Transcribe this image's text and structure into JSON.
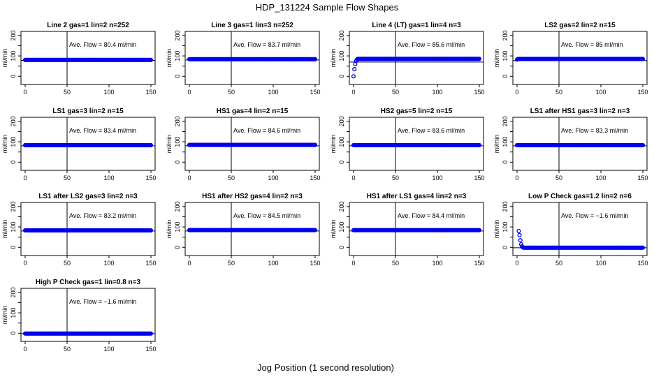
{
  "figure": {
    "title": "HDP_131224  Sample Flow Shapes",
    "xlabel": "Jog Position (1 second resolution)"
  },
  "chart_data": [
    {
      "type": "scatter",
      "title": "Line 2 gas=1 lin=2 n=252",
      "annotation": "Ave. Flow =  80.4  ml/min",
      "ylabel": "ml/min",
      "ylim": [
        -40,
        220
      ],
      "xlim": [
        -5,
        155
      ],
      "xticks": [
        0,
        50,
        100,
        150
      ],
      "yticks": [
        0,
        100,
        200
      ],
      "yticks_minor": [
        50,
        150
      ],
      "vline_x": 50,
      "hline_y": 78,
      "points": {
        "x_start": 0,
        "x_end": 150,
        "values": [
          80.4
        ]
      }
    },
    {
      "type": "scatter",
      "title": "Line 3 gas=1 lin=3 n=252",
      "annotation": "Ave. Flow =  83.7  ml/min",
      "ylabel": "ml/min",
      "ylim": [
        -40,
        220
      ],
      "xlim": [
        -5,
        155
      ],
      "xticks": [
        0,
        50,
        100,
        150
      ],
      "yticks": [
        0,
        100,
        200
      ],
      "yticks_minor": [
        50,
        150
      ],
      "vline_x": 50,
      "hline_y": 80,
      "points": {
        "x_start": 0,
        "x_end": 150,
        "values": [
          83.7
        ]
      }
    },
    {
      "type": "scatter",
      "title": "Line 4 (LT) gas=1 lin=4 n=3",
      "annotation": "Ave. Flow =  85.6  ml/min",
      "ylabel": "ml/min",
      "ylim": [
        -40,
        220
      ],
      "xlim": [
        -5,
        155
      ],
      "xticks": [
        0,
        50,
        100,
        150
      ],
      "yticks": [
        0,
        100,
        200
      ],
      "yticks_minor": [
        50,
        150
      ],
      "vline_x": 50,
      "hline_y": 70,
      "points": {
        "x_start": 0,
        "x_end": 150,
        "values": [
          0,
          35,
          60,
          75,
          82,
          85.6
        ]
      }
    },
    {
      "type": "scatter",
      "title": "LS2 gas=2 lin=2 n=15",
      "annotation": "Ave. Flow =  85  ml/min",
      "ylabel": "ml/min",
      "ylim": [
        -40,
        220
      ],
      "xlim": [
        -5,
        155
      ],
      "xticks": [
        0,
        50,
        100,
        150
      ],
      "yticks": [
        0,
        100,
        200
      ],
      "yticks_minor": [
        50,
        150
      ],
      "vline_x": 50,
      "hline_y": 77,
      "points": {
        "x_start": 0,
        "x_end": 150,
        "values": [
          82,
          85
        ]
      }
    },
    {
      "type": "scatter",
      "title": "LS1 gas=3 lin=2 n=15",
      "annotation": "Ave. Flow =  83.4  ml/min",
      "ylabel": "ml/min",
      "ylim": [
        -40,
        220
      ],
      "xlim": [
        -5,
        155
      ],
      "xticks": [
        0,
        50,
        100,
        150
      ],
      "yticks": [
        0,
        100,
        200
      ],
      "yticks_minor": [
        50,
        150
      ],
      "vline_x": 50,
      "hline_y": 80,
      "points": {
        "x_start": 0,
        "x_end": 150,
        "values": [
          83.4
        ]
      }
    },
    {
      "type": "scatter",
      "title": "HS1 gas=4 lin=2 n=15",
      "annotation": "Ave. Flow =  84.6  ml/min",
      "ylabel": "ml/min",
      "ylim": [
        -40,
        220
      ],
      "xlim": [
        -5,
        155
      ],
      "xticks": [
        0,
        50,
        100,
        150
      ],
      "yticks": [
        0,
        100,
        200
      ],
      "yticks_minor": [
        50,
        150
      ],
      "vline_x": 50,
      "hline_y": 80,
      "points": {
        "x_start": 0,
        "x_end": 150,
        "values": [
          84.6
        ]
      }
    },
    {
      "type": "scatter",
      "title": "HS2 gas=5 lin=2 n=15",
      "annotation": "Ave. Flow =  83.6  ml/min",
      "ylabel": "ml/min",
      "ylim": [
        -40,
        220
      ],
      "xlim": [
        -5,
        155
      ],
      "xticks": [
        0,
        50,
        100,
        150
      ],
      "yticks": [
        0,
        100,
        200
      ],
      "yticks_minor": [
        50,
        150
      ],
      "vline_x": 50,
      "hline_y": 80,
      "points": {
        "x_start": 0,
        "x_end": 150,
        "values": [
          83.6
        ]
      }
    },
    {
      "type": "scatter",
      "title": "LS1 after HS1 gas=3 lin=2 n=3",
      "annotation": "Ave. Flow =  83.3  ml/min",
      "ylabel": "ml/min",
      "ylim": [
        -40,
        220
      ],
      "xlim": [
        -5,
        155
      ],
      "xticks": [
        0,
        50,
        100,
        150
      ],
      "yticks": [
        0,
        100,
        200
      ],
      "yticks_minor": [
        50,
        150
      ],
      "vline_x": 50,
      "hline_y": 80,
      "points": {
        "x_start": 0,
        "x_end": 150,
        "values": [
          83.3
        ]
      }
    },
    {
      "type": "scatter",
      "title": "LS1 after LS2 gas=3 lin=2 n=3",
      "annotation": "Ave. Flow =  83.2  ml/min",
      "ylabel": "ml/min",
      "ylim": [
        -40,
        220
      ],
      "xlim": [
        -5,
        155
      ],
      "xticks": [
        0,
        50,
        100,
        150
      ],
      "yticks": [
        0,
        100,
        200
      ],
      "yticks_minor": [
        50,
        150
      ],
      "vline_x": 50,
      "hline_y": 80,
      "points": {
        "x_start": 0,
        "x_end": 150,
        "values": [
          83.2
        ]
      }
    },
    {
      "type": "scatter",
      "title": "HS1 after HS2 gas=4 lin=2 n=3",
      "annotation": "Ave. Flow =  84.5  ml/min",
      "ylabel": "ml/min",
      "ylim": [
        -40,
        220
      ],
      "xlim": [
        -5,
        155
      ],
      "xticks": [
        0,
        50,
        100,
        150
      ],
      "yticks": [
        0,
        100,
        200
      ],
      "yticks_minor": [
        50,
        150
      ],
      "vline_x": 50,
      "hline_y": 80,
      "points": {
        "x_start": 0,
        "x_end": 150,
        "values": [
          84.5
        ]
      }
    },
    {
      "type": "scatter",
      "title": "HS1 after LS1 gas=4 lin=2 n=3",
      "annotation": "Ave. Flow =  84.4  ml/min",
      "ylabel": "ml/min",
      "ylim": [
        -40,
        220
      ],
      "xlim": [
        -5,
        155
      ],
      "xticks": [
        0,
        50,
        100,
        150
      ],
      "yticks": [
        0,
        100,
        200
      ],
      "yticks_minor": [
        50,
        150
      ],
      "vline_x": 50,
      "hline_y": 80,
      "points": {
        "x_start": 0,
        "x_end": 150,
        "values": [
          84.4
        ]
      }
    },
    {
      "type": "scatter",
      "title": "Low P Check gas=1.2 lin=2 n=6",
      "annotation": "Ave. Flow =  −1.6  ml/min",
      "ylabel": "ml/min",
      "ylim": [
        -40,
        220
      ],
      "xlim": [
        -5,
        155
      ],
      "xticks": [
        0,
        50,
        100,
        150
      ],
      "yticks": [
        0,
        100,
        200
      ],
      "yticks_minor": [
        50,
        150
      ],
      "vline_x": 50,
      "hline_y": -2,
      "points": {
        "x_start": 2,
        "x_end": 150,
        "values": [
          80,
          60,
          35,
          15,
          5,
          0,
          -1.6
        ]
      }
    },
    {
      "type": "scatter",
      "title": "High P Check gas=1 lin=0.8 n=3",
      "annotation": "Ave. Flow =  −1.6  ml/min",
      "ylabel": "ml/min",
      "ylim": [
        -40,
        220
      ],
      "xlim": [
        -5,
        155
      ],
      "xticks": [
        0,
        50,
        100,
        150
      ],
      "yticks": [
        0,
        100,
        200
      ],
      "yticks_minor": [
        50,
        150
      ],
      "vline_x": 50,
      "hline_y": -2,
      "points": {
        "x_start": 0,
        "x_end": 150,
        "values": [
          -1.6
        ]
      }
    }
  ],
  "colors": {
    "points": "#0000ee",
    "axis": "#000000"
  }
}
